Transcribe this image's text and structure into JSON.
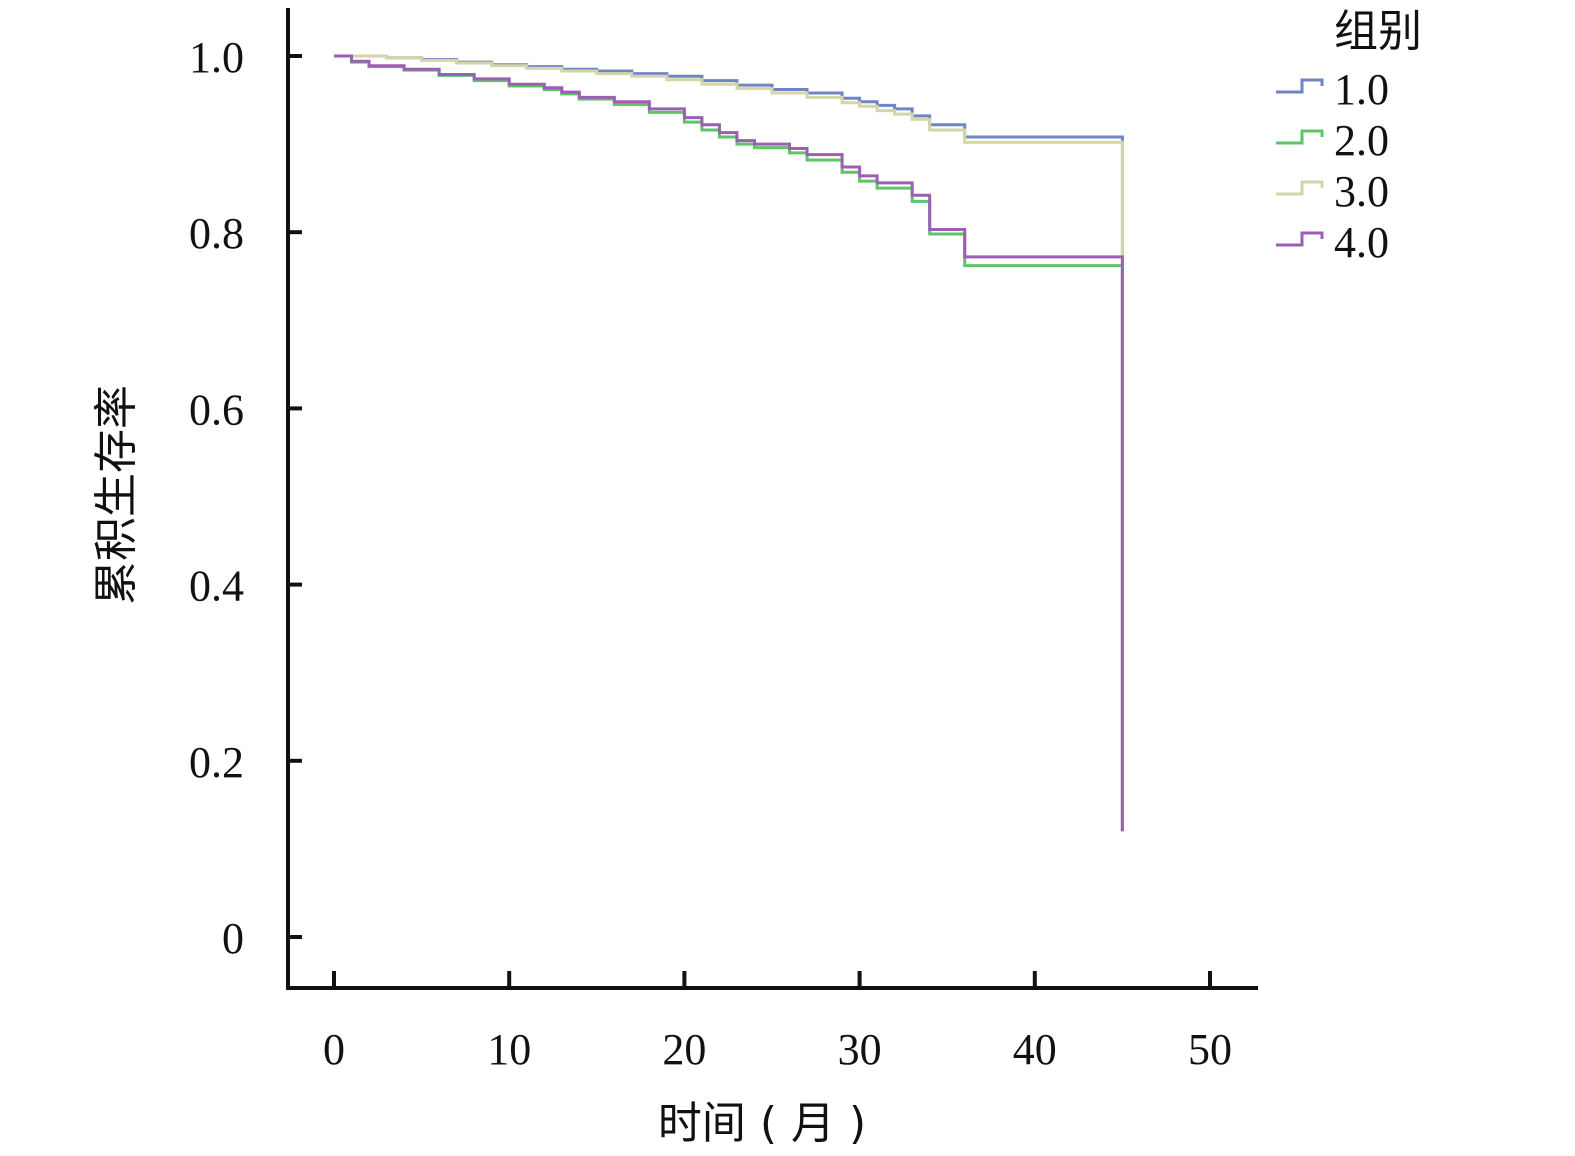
{
  "chart_data": {
    "type": "line",
    "step": true,
    "xlabel": "时间 ( 月 )",
    "ylabel": "累积生存率",
    "xlim": [
      0,
      50
    ],
    "ylim": [
      0,
      1.0
    ],
    "x_ticks": [
      0,
      10,
      20,
      30,
      40,
      50
    ],
    "y_ticks": [
      0,
      0.2,
      0.4,
      0.6,
      0.8,
      1.0
    ],
    "x_tick_labels": [
      "0",
      "10",
      "20",
      "30",
      "40",
      "50"
    ],
    "y_tick_labels": [
      "0",
      "0.2",
      "0.4",
      "0.6",
      "0.8",
      "1.0"
    ],
    "grid": false,
    "legend": {
      "title": "组别",
      "position": "top-right"
    },
    "series": [
      {
        "name": "1.0",
        "color": "#6f86c4",
        "x": [
          0,
          3,
          5,
          7,
          9,
          11,
          13,
          15,
          17,
          19,
          21,
          23,
          25,
          27,
          29,
          30,
          31,
          32,
          33,
          34,
          36,
          45,
          45
        ],
        "y": [
          1.0,
          0.998,
          0.996,
          0.993,
          0.99,
          0.988,
          0.985,
          0.983,
          0.98,
          0.977,
          0.972,
          0.967,
          0.962,
          0.958,
          0.952,
          0.948,
          0.944,
          0.94,
          0.932,
          0.922,
          0.908,
          0.908,
          0.12
        ]
      },
      {
        "name": "2.0",
        "color": "#5dc46a",
        "x": [
          0,
          1,
          2,
          4,
          6,
          8,
          10,
          12,
          13,
          14,
          16,
          18,
          20,
          21,
          22,
          23,
          24,
          26,
          27,
          29,
          30,
          31,
          33,
          34,
          36,
          45,
          45
        ],
        "y": [
          1.0,
          0.993,
          0.988,
          0.984,
          0.978,
          0.972,
          0.966,
          0.962,
          0.957,
          0.951,
          0.945,
          0.936,
          0.925,
          0.916,
          0.908,
          0.9,
          0.896,
          0.89,
          0.882,
          0.868,
          0.858,
          0.85,
          0.835,
          0.798,
          0.762,
          0.762,
          0.12
        ]
      },
      {
        "name": "3.0",
        "color": "#d4d6a6",
        "x": [
          0,
          3,
          5,
          7,
          9,
          11,
          13,
          15,
          17,
          19,
          21,
          23,
          25,
          27,
          29,
          30,
          31,
          32,
          33,
          34,
          36,
          45,
          45
        ],
        "y": [
          1.0,
          0.998,
          0.995,
          0.992,
          0.989,
          0.986,
          0.983,
          0.98,
          0.977,
          0.973,
          0.968,
          0.963,
          0.958,
          0.953,
          0.947,
          0.943,
          0.938,
          0.934,
          0.928,
          0.916,
          0.902,
          0.902,
          0.12
        ]
      },
      {
        "name": "4.0",
        "color": "#9b5fb4",
        "x": [
          0,
          1,
          2,
          4,
          6,
          8,
          10,
          12,
          13,
          14,
          16,
          18,
          20,
          21,
          22,
          23,
          24,
          26,
          27,
          29,
          30,
          31,
          33,
          34,
          36,
          45,
          45
        ],
        "y": [
          1.0,
          0.994,
          0.989,
          0.985,
          0.979,
          0.974,
          0.968,
          0.964,
          0.959,
          0.953,
          0.948,
          0.94,
          0.93,
          0.922,
          0.913,
          0.904,
          0.9,
          0.895,
          0.888,
          0.874,
          0.864,
          0.856,
          0.842,
          0.803,
          0.772,
          0.772,
          0.12
        ]
      }
    ]
  }
}
